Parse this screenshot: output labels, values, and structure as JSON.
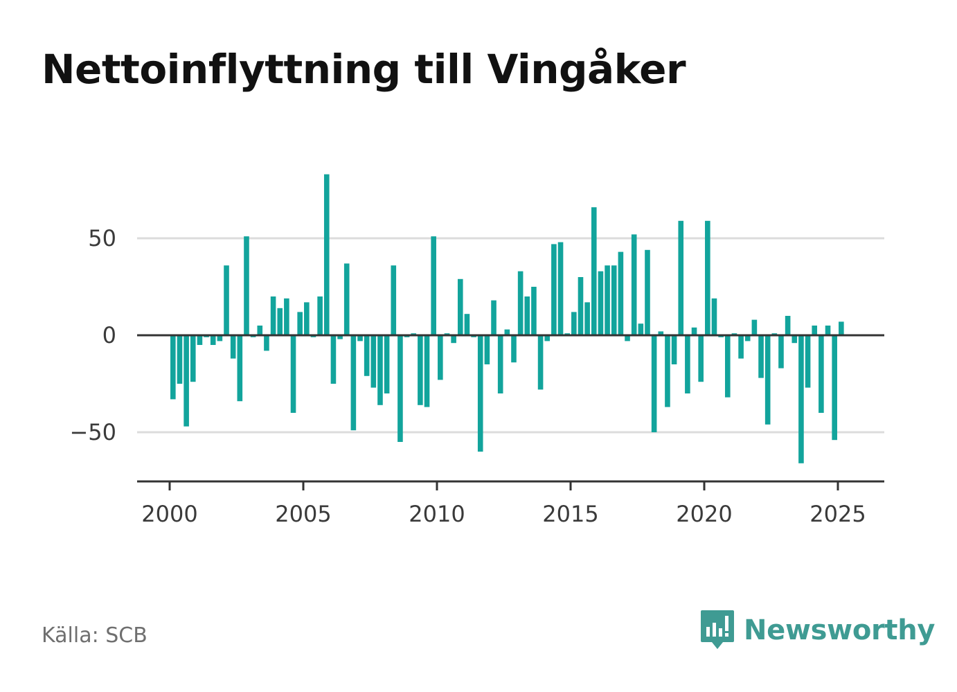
{
  "title": "Nettoinflyttning till Vingåker",
  "source": "Källa: SCB",
  "brand": "Newsworthy",
  "colors": {
    "bar": "#12a49c",
    "grid": "#dcdcdc",
    "axis": "#333333",
    "text": "#3a3a3a",
    "brand": "#3f9b93"
  },
  "chart_data": {
    "type": "bar",
    "x_label_ticks": [
      2000,
      2005,
      2010,
      2015,
      2020,
      2025
    ],
    "y_label_ticks": [
      50,
      0,
      -50
    ],
    "y_tick_labels": [
      "50",
      "0",
      "−50"
    ],
    "ylim": [
      -75,
      83
    ],
    "grid": true,
    "series": [
      {
        "start": "2000-Q1",
        "values": [
          -33,
          -25,
          -47,
          -24,
          -5,
          -1,
          -5,
          -3,
          36,
          -12,
          -34,
          51,
          -1,
          5,
          -8,
          20,
          14,
          19,
          -40,
          12,
          17,
          -1,
          20,
          83,
          -25,
          -2,
          37,
          -49,
          -3,
          -21,
          -27,
          -36,
          -30,
          36,
          -55,
          -1,
          1,
          -36,
          -37,
          51,
          -23,
          1,
          -4,
          29,
          11,
          -1,
          -60,
          -15,
          18,
          -30,
          3,
          -14,
          33,
          20,
          25,
          -28,
          -3,
          47,
          48,
          1,
          12,
          30,
          17,
          66,
          33,
          36,
          36,
          43,
          -3,
          52,
          6,
          44,
          -50,
          2,
          -37,
          -15,
          59,
          -30,
          4,
          -24,
          59,
          19,
          -1,
          -32,
          1,
          -12,
          -3,
          8,
          -22,
          -46,
          1,
          -17,
          10,
          -4,
          -66,
          -27,
          5,
          -40,
          5,
          -54,
          7
        ]
      }
    ]
  }
}
